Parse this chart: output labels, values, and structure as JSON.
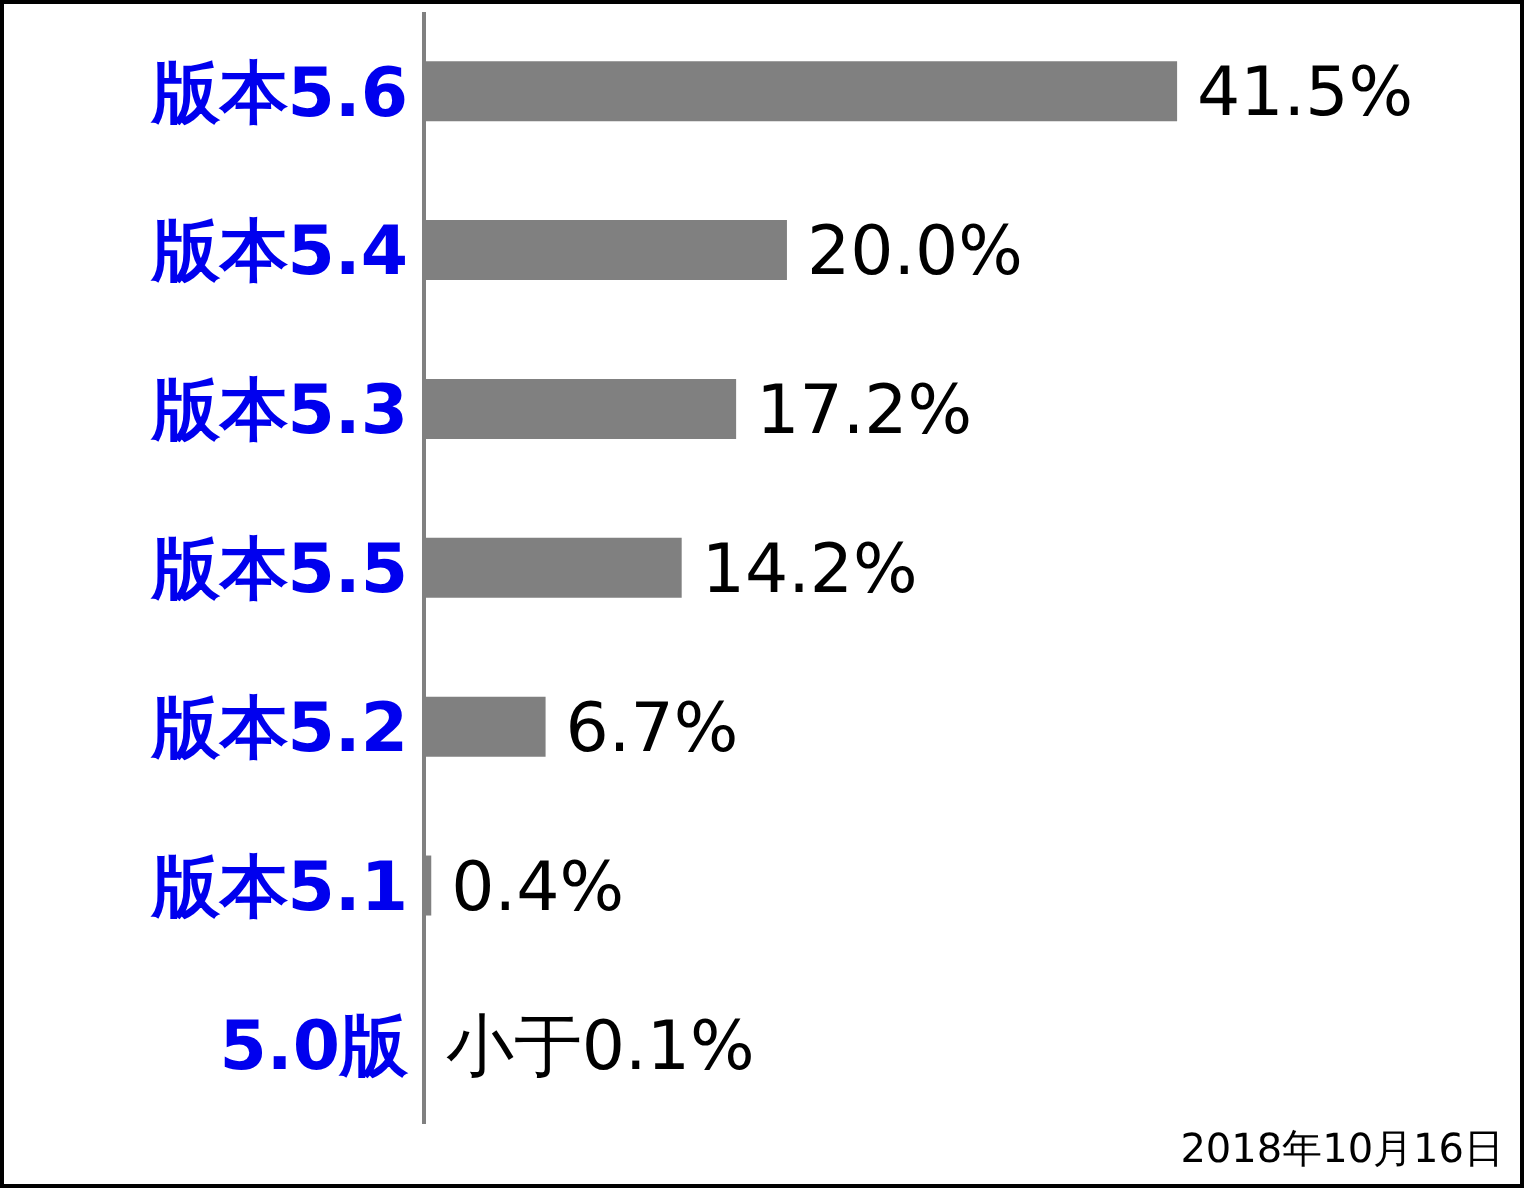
{
  "chart_data": {
    "type": "bar",
    "orientation": "horizontal",
    "categories": [
      "版本5.6",
      "版本5.4",
      "版本5.3",
      "版本5.5",
      "版本5.2",
      "版本5.1",
      "5.0版"
    ],
    "values": [
      41.5,
      20.0,
      17.2,
      14.2,
      6.7,
      0.4,
      0.1
    ],
    "value_labels": [
      "41.5%",
      "20.0%",
      "17.2%",
      "14.2%",
      "6.7%",
      "0.4%",
      "小于0.1%"
    ],
    "color": "#808080",
    "annotations": [
      "2018年10月16日"
    ]
  }
}
